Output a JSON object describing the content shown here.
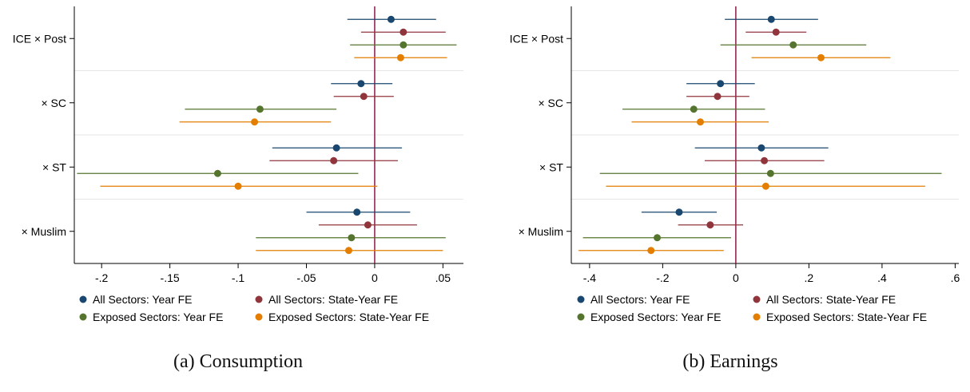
{
  "colors": {
    "all_year": "#1a476f",
    "all_state": "#90353b",
    "exp_year": "#55752f",
    "exp_state": "#e37e00",
    "zero_line": "#8b1a4a",
    "axis": "#000000",
    "grid": "#e6e6e6"
  },
  "chart_data": [
    {
      "type": "coefficient-plot",
      "caption": "(a) Consumption",
      "title": "",
      "xlabel": "",
      "ylabel": "",
      "xlim": [
        -0.22,
        0.065
      ],
      "xticks": [
        -0.2,
        -0.15,
        -0.1,
        -0.05,
        0,
        0.05
      ],
      "xtick_labels": [
        "-.2",
        "-.15",
        "-.1",
        "-.05",
        "0",
        ".05"
      ],
      "grid": "horizontal separators between groups",
      "legend": "bottom",
      "categories": [
        "ICE × Post",
        "× SC",
        "× ST",
        "× Muslim"
      ],
      "series": [
        {
          "name": "All Sectors: Year FE",
          "color_key": "all_year",
          "estimates": [
            0.012,
            -0.01,
            -0.028,
            -0.013
          ],
          "ci_low": [
            -0.02,
            -0.032,
            -0.075,
            -0.05
          ],
          "ci_high": [
            0.045,
            0.013,
            0.02,
            0.026
          ]
        },
        {
          "name": "All Sectors: State-Year FE",
          "color_key": "all_state",
          "estimates": [
            0.021,
            -0.008,
            -0.03,
            -0.005
          ],
          "ci_low": [
            -0.01,
            -0.03,
            -0.077,
            -0.041
          ],
          "ci_high": [
            0.052,
            0.014,
            0.017,
            0.031
          ]
        },
        {
          "name": "Exposed Sectors: Year FE",
          "color_key": "exp_year",
          "estimates": [
            0.021,
            -0.084,
            -0.115,
            -0.017
          ],
          "ci_low": [
            -0.018,
            -0.139,
            -0.218,
            -0.087
          ],
          "ci_high": [
            0.06,
            -0.028,
            -0.012,
            0.052
          ]
        },
        {
          "name": "Exposed Sectors: State-Year FE",
          "color_key": "exp_state",
          "estimates": [
            0.019,
            -0.088,
            -0.1,
            -0.019
          ],
          "ci_low": [
            -0.015,
            -0.143,
            -0.201,
            -0.087
          ],
          "ci_high": [
            0.053,
            -0.032,
            0.002,
            0.05
          ]
        }
      ]
    },
    {
      "type": "coefficient-plot",
      "caption": "(b) Earnings",
      "title": "",
      "xlabel": "",
      "ylabel": "",
      "xlim": [
        -0.45,
        0.61
      ],
      "xticks": [
        -0.4,
        -0.2,
        0,
        0.2,
        0.4,
        0.6
      ],
      "xtick_labels": [
        "-.4",
        "-.2",
        "0",
        ".2",
        ".4",
        ".6"
      ],
      "grid": "horizontal separators between groups",
      "legend": "bottom",
      "categories": [
        "ICE × Post",
        "× SC",
        "× ST",
        "× Muslim"
      ],
      "series": [
        {
          "name": "All Sectors: Year FE",
          "color_key": "all_year",
          "estimates": [
            0.097,
            -0.042,
            0.07,
            -0.155
          ],
          "ci_low": [
            -0.03,
            -0.135,
            -0.112,
            -0.258
          ],
          "ci_high": [
            0.225,
            0.052,
            0.253,
            -0.052
          ]
        },
        {
          "name": "All Sectors: State-Year FE",
          "color_key": "all_state",
          "estimates": [
            0.11,
            -0.05,
            0.078,
            -0.07
          ],
          "ci_low": [
            0.027,
            -0.135,
            -0.085,
            -0.158
          ],
          "ci_high": [
            0.193,
            0.037,
            0.242,
            0.02
          ]
        },
        {
          "name": "Exposed Sectors: Year FE",
          "color_key": "exp_year",
          "estimates": [
            0.157,
            -0.115,
            0.095,
            -0.215
          ],
          "ci_low": [
            -0.042,
            -0.31,
            -0.372,
            -0.418
          ],
          "ci_high": [
            0.357,
            0.08,
            0.563,
            -0.013
          ]
        },
        {
          "name": "Exposed Sectors: State-Year FE",
          "color_key": "exp_state",
          "estimates": [
            0.233,
            -0.097,
            0.082,
            -0.232
          ],
          "ci_low": [
            0.043,
            -0.285,
            -0.355,
            -0.43
          ],
          "ci_high": [
            0.423,
            0.09,
            0.518,
            -0.033
          ]
        }
      ]
    }
  ]
}
